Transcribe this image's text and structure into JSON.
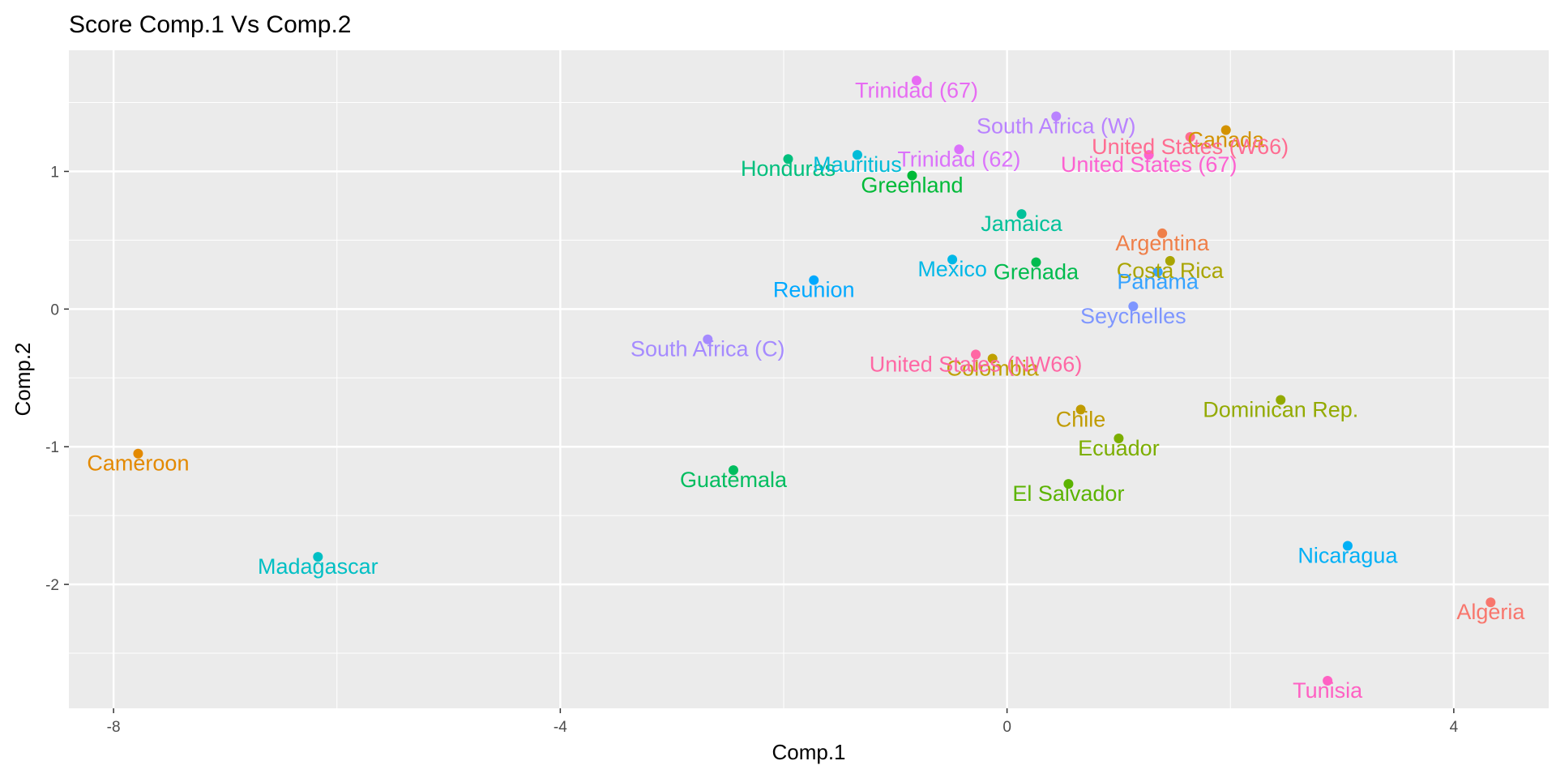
{
  "chart_data": {
    "type": "scatter",
    "title": "Score Comp.1 Vs Comp.2",
    "xlabel": "Comp.1",
    "ylabel": "Comp.2",
    "xlim": [
      -8.4,
      4.85
    ],
    "ylim": [
      -2.9,
      1.88
    ],
    "x_ticks": [
      -8,
      -4,
      0,
      4
    ],
    "y_ticks": [
      -2,
      -1,
      0,
      1
    ],
    "grid": true,
    "legend": "none",
    "points": [
      {
        "label": "Algeria",
        "x": 4.33,
        "y": -2.13,
        "color": "#F8766D"
      },
      {
        "label": "Argentina",
        "x": 1.39,
        "y": 0.55,
        "color": "#EF7F49"
      },
      {
        "label": "Cameroon",
        "x": -7.78,
        "y": -1.05,
        "color": "#E38900"
      },
      {
        "label": "Canada",
        "x": 1.96,
        "y": 1.3,
        "color": "#D39200"
      },
      {
        "label": "Chile",
        "x": 0.66,
        "y": -0.73,
        "color": "#C09B00"
      },
      {
        "label": "Colombia",
        "x": -0.13,
        "y": -0.36,
        "color": "#BFA000"
      },
      {
        "label": "Costa Rica",
        "x": 1.46,
        "y": 0.35,
        "color": "#A9A400"
      },
      {
        "label": "Dominican Rep.",
        "x": 2.45,
        "y": -0.66,
        "color": "#93AA00"
      },
      {
        "label": "Ecuador",
        "x": 1.0,
        "y": -0.94,
        "color": "#7CAE00"
      },
      {
        "label": "El Salvador",
        "x": 0.55,
        "y": -1.27,
        "color": "#5BB300"
      },
      {
        "label": "Greenland",
        "x": -0.85,
        "y": 0.97,
        "color": "#00BA38"
      },
      {
        "label": "Grenada",
        "x": 0.26,
        "y": 0.34,
        "color": "#00BB4E"
      },
      {
        "label": "Guatemala",
        "x": -2.45,
        "y": -1.17,
        "color": "#00BD5F"
      },
      {
        "label": "Honduras",
        "x": -1.96,
        "y": 1.09,
        "color": "#00BF7D"
      },
      {
        "label": "Jamaica",
        "x": 0.13,
        "y": 0.69,
        "color": "#00C19A"
      },
      {
        "label": "Madagascar",
        "x": -6.17,
        "y": -1.8,
        "color": "#00BFC4"
      },
      {
        "label": "Mauritius",
        "x": -1.34,
        "y": 1.12,
        "color": "#00BCD8"
      },
      {
        "label": "Mexico",
        "x": -0.49,
        "y": 0.36,
        "color": "#00B8E7"
      },
      {
        "label": "Nicaragua",
        "x": 3.05,
        "y": -1.72,
        "color": "#00B0F6"
      },
      {
        "label": "Panama",
        "x": 1.35,
        "y": 0.27,
        "color": "#35A2FF"
      },
      {
        "label": "Reunion",
        "x": -1.73,
        "y": 0.21,
        "color": "#00A9FF"
      },
      {
        "label": "Seychelles",
        "x": 1.13,
        "y": 0.02,
        "color": "#7E96FF"
      },
      {
        "label": "South Africa (C)",
        "x": -2.68,
        "y": -0.22,
        "color": "#A58AFF"
      },
      {
        "label": "South Africa (W)",
        "x": 0.44,
        "y": 1.4,
        "color": "#B983FF"
      },
      {
        "label": "Trinidad (62)",
        "x": -0.43,
        "y": 1.16,
        "color": "#DB72FB"
      },
      {
        "label": "Trinidad (67)",
        "x": -0.81,
        "y": 1.66,
        "color": "#E76BF3"
      },
      {
        "label": "Tunisia",
        "x": 2.87,
        "y": -2.7,
        "color": "#FF61C3"
      },
      {
        "label": "United States (67)",
        "x": 1.27,
        "y": 1.12,
        "color": "#FD61D1"
      },
      {
        "label": "United States (NW66)",
        "x": -0.28,
        "y": -0.33,
        "color": "#FF67A4"
      },
      {
        "label": "United States (W66)",
        "x": 1.64,
        "y": 1.25,
        "color": "#FF6C91"
      }
    ]
  }
}
